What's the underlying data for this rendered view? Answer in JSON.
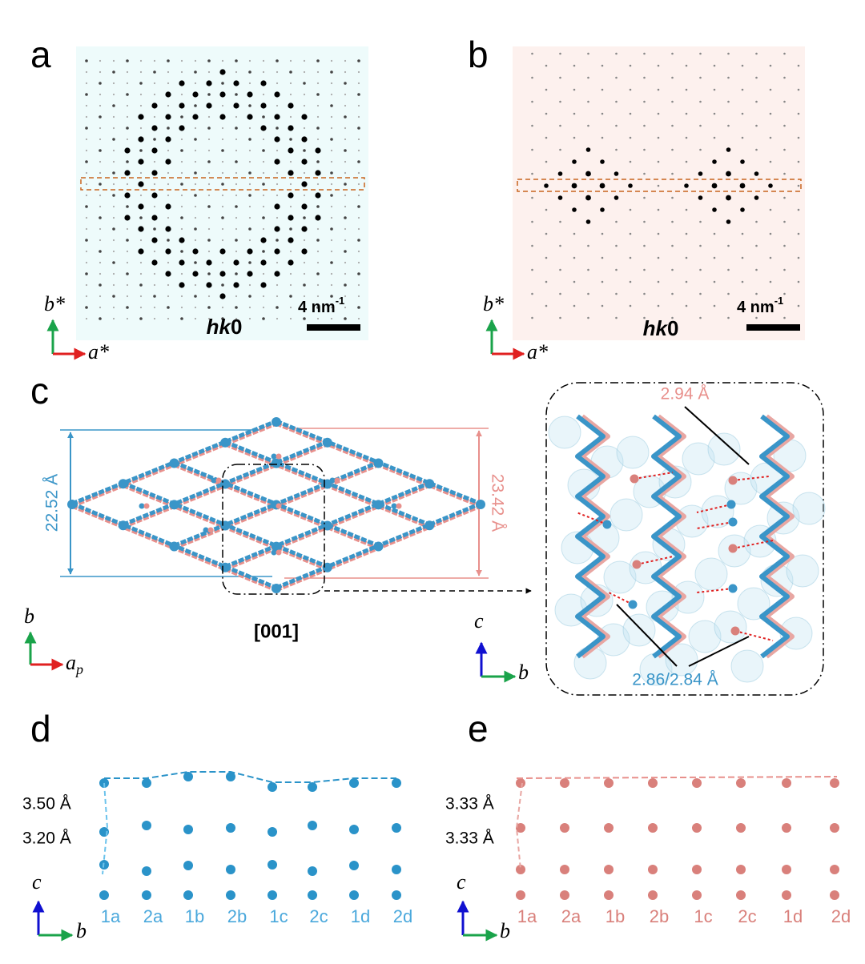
{
  "panels": {
    "a": {
      "label": "a",
      "axis_y": "b*",
      "axis_x": "a*",
      "plane": {
        "italic": "hk",
        "plain": "0"
      },
      "scale_bar": {
        "text": "4 nm",
        "exponent": "-1"
      }
    },
    "b": {
      "label": "b",
      "axis_y": "b*",
      "axis_x": "a*",
      "plane": {
        "italic": "hk",
        "plain": "0"
      },
      "scale_bar": {
        "text": "4 nm",
        "exponent": "-1"
      }
    },
    "c": {
      "label": "c",
      "height_blue": "22.52 Å",
      "height_pink": "23.42 Å",
      "direction": "[001]",
      "axis_y": "b",
      "axis_x": {
        "base": "a",
        "subscript": "p"
      },
      "inset": {
        "distance_pink": "2.94 Å",
        "distance_blue": "2.86/2.84 Å",
        "axis_y": "c",
        "axis_x": "b"
      }
    },
    "d": {
      "label": "d",
      "spacing_top": "3.50 Å",
      "spacing_bottom": "3.20 Å",
      "axis_y": "c",
      "axis_x": "b",
      "columns": [
        "1a",
        "2a",
        "1b",
        "2b",
        "1c",
        "2c",
        "1d",
        "2d"
      ]
    },
    "e": {
      "label": "e",
      "spacing_top": "3.33 Å",
      "spacing_bottom": "3.33 Å",
      "axis_y": "c",
      "axis_x": "b",
      "columns": [
        "1a",
        "2a",
        "1b",
        "2b",
        "1c",
        "2c",
        "1d",
        "2d"
      ]
    }
  }
}
